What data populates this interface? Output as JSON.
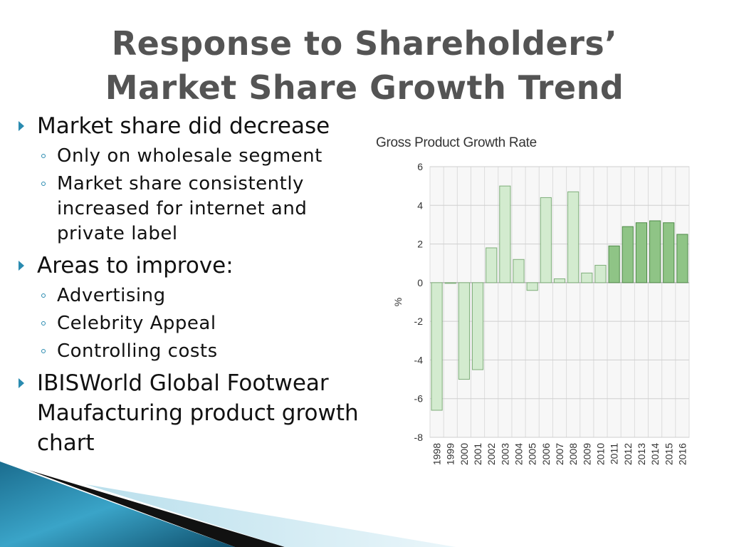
{
  "slide": {
    "title_line1": "Response to Shareholders’",
    "title_line2": "Market Share Growth Trend"
  },
  "bullets": [
    {
      "text": "Market share did decrease",
      "sub": [
        "Only on wholesale segment",
        "Market share consistently increased for internet and private label"
      ]
    },
    {
      "text": "Areas to improve:",
      "sub": [
        "Advertising",
        "Celebrity Appeal",
        "Controlling costs"
      ]
    },
    {
      "text": "IBISWorld Global Footwear Maufacturing product growth chart",
      "sub": []
    }
  ],
  "chart_data": {
    "type": "bar",
    "title": "Gross Product Growth Rate",
    "ylabel": "%",
    "xlabel": "",
    "ylim": [
      -8,
      6
    ],
    "yticks": [
      6,
      4,
      2,
      0,
      -2,
      -4,
      -6,
      -8
    ],
    "grid": true,
    "categories": [
      "1998",
      "1999",
      "2000",
      "2001",
      "2002",
      "2003",
      "2004",
      "2005",
      "2006",
      "2007",
      "2008",
      "2009",
      "2010",
      "2011",
      "2012",
      "2013",
      "2014",
      "2015",
      "2016"
    ],
    "values": [
      -6.6,
      0.0,
      -5.0,
      -4.5,
      1.8,
      5.0,
      1.2,
      -0.4,
      4.4,
      0.2,
      4.7,
      0.5,
      0.9,
      1.9,
      2.9,
      3.1,
      3.2,
      3.1,
      2.5
    ],
    "colors": {
      "historical": "#d3ebcf",
      "historical_stroke": "#7fae7a",
      "forecast": "#8fc486",
      "forecast_stroke": "#4f8a49"
    },
    "forecast_from": "2011"
  },
  "theme": {
    "accent": "#2a8bb0",
    "title_color": "#545454"
  }
}
